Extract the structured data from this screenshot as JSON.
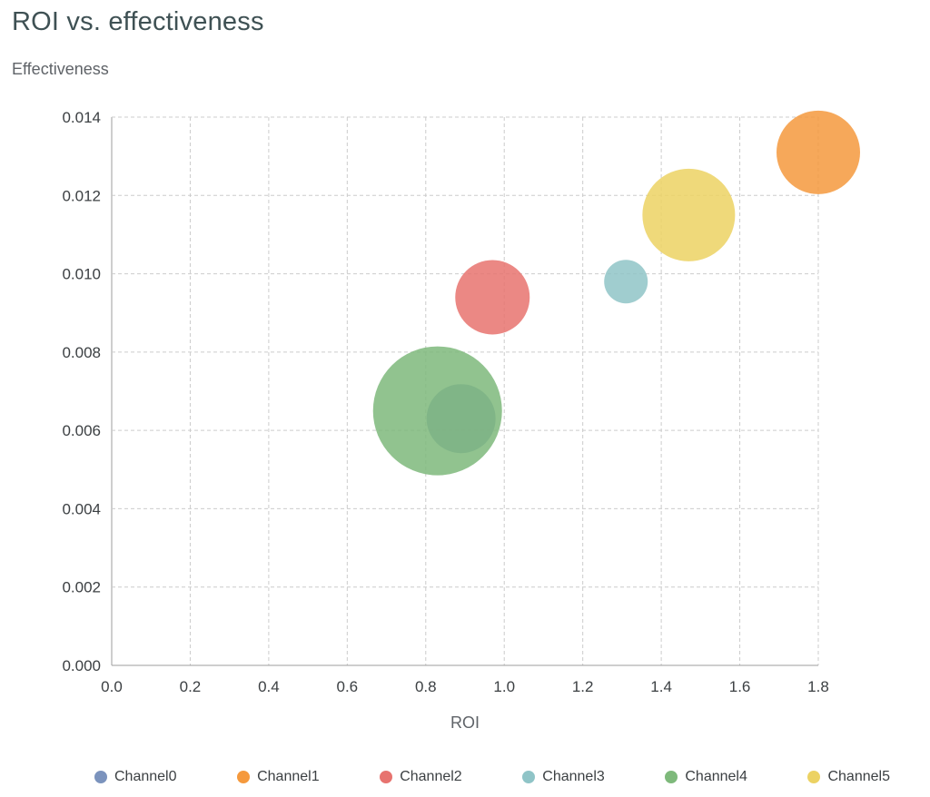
{
  "chart_data": {
    "type": "scatter",
    "variant": "bubble",
    "title": "ROI vs. effectiveness",
    "xlabel": "ROI",
    "ylabel": "Effectiveness",
    "xlim": [
      0,
      1.8
    ],
    "ylim": [
      0,
      0.014
    ],
    "x_ticks": [
      "0.0",
      "0.2",
      "0.4",
      "0.6",
      "0.8",
      "1.0",
      "1.2",
      "1.4",
      "1.6",
      "1.8"
    ],
    "y_ticks": [
      "0.000",
      "0.002",
      "0.004",
      "0.006",
      "0.008",
      "0.010",
      "0.012",
      "0.014"
    ],
    "grid": "dashed",
    "legend_position": "bottom",
    "bubble_opacity": 0.85,
    "series": [
      {
        "name": "Channel0",
        "color": "#7b93bd",
        "roi": 0.89,
        "effectiveness": 0.0063,
        "radius_px": 38
      },
      {
        "name": "Channel1",
        "color": "#f5993d",
        "roi": 1.8,
        "effectiveness": 0.0131,
        "radius_px": 46
      },
      {
        "name": "Channel2",
        "color": "#e7736f",
        "roi": 0.97,
        "effectiveness": 0.0094,
        "radius_px": 41
      },
      {
        "name": "Channel3",
        "color": "#8fc4c7",
        "roi": 1.31,
        "effectiveness": 0.0098,
        "radius_px": 24
      },
      {
        "name": "Channel4",
        "color": "#7eb97b",
        "roi": 0.83,
        "effectiveness": 0.0065,
        "radius_px": 71
      },
      {
        "name": "Channel5",
        "color": "#ecd263",
        "roi": 1.47,
        "effectiveness": 0.0115,
        "radius_px": 51
      }
    ],
    "colors": {
      "title": "#3f5154",
      "axis_label": "#5f6368",
      "tick_label": "#3c4043",
      "gridline": "#cccccc",
      "axis_line": "#9e9e9e",
      "legend_text": "#3c4043",
      "background": "#ffffff"
    }
  }
}
